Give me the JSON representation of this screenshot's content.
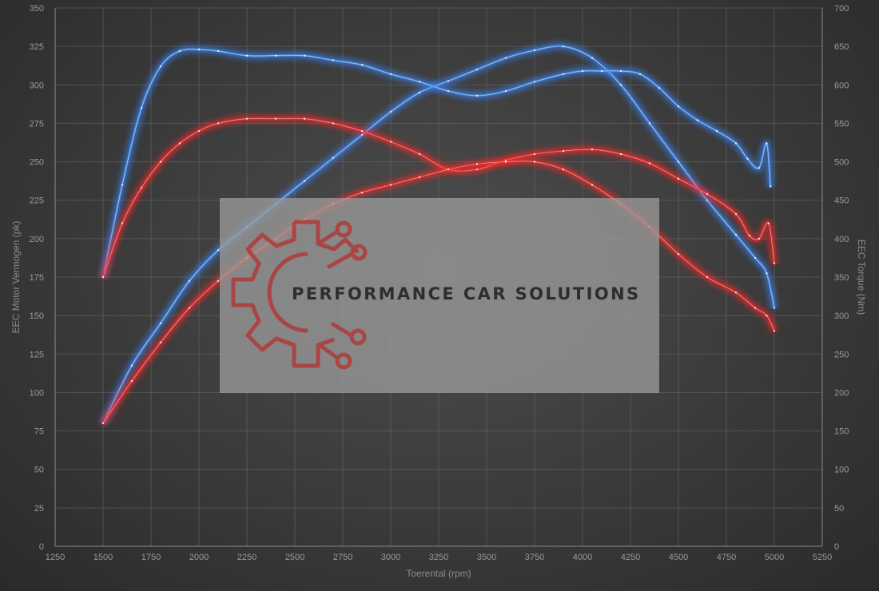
{
  "chart_data": {
    "type": "line",
    "xlabel": "Toerental (rpm)",
    "ylabel": "EEC Motor Vermogen (pk)",
    "y2label": "EEC Torque (Nm)",
    "xlim": [
      1250,
      5250
    ],
    "ylim": [
      0,
      350
    ],
    "y2lim": [
      0,
      700
    ],
    "x_ticks": [
      1250,
      1500,
      1750,
      2000,
      2250,
      2500,
      2750,
      3000,
      3250,
      3500,
      3750,
      4000,
      4250,
      4500,
      4750,
      5000,
      5250
    ],
    "y_ticks": [
      0,
      25,
      50,
      75,
      100,
      125,
      150,
      175,
      200,
      225,
      250,
      275,
      300,
      325,
      350
    ],
    "y2_ticks": [
      0,
      50,
      100,
      150,
      200,
      250,
      300,
      350,
      400,
      450,
      500,
      550,
      600,
      650,
      700
    ],
    "grid": true,
    "series": [
      {
        "axis": "right",
        "color": "#4a8fe0",
        "glow": "#3a86ff",
        "x": [
          1500,
          1650,
          1800,
          1950,
          2100,
          2250,
          2400,
          2550,
          2700,
          2850,
          3000,
          3150,
          3300,
          3450,
          3600,
          3750,
          3900,
          4050,
          4200,
          4350,
          4500,
          4650,
          4800,
          4900,
          4960,
          5000
        ],
        "values": [
          160,
          235,
          290,
          345,
          385,
          415,
          445,
          475,
          505,
          535,
          565,
          590,
          605,
          620,
          635,
          645,
          650,
          635,
          600,
          550,
          500,
          450,
          405,
          375,
          355,
          310
        ]
      },
      {
        "axis": "left",
        "color": "#4a8fe0",
        "glow": "#3a86ff",
        "x": [
          1500,
          1600,
          1700,
          1800,
          1900,
          2000,
          2100,
          2250,
          2400,
          2550,
          2700,
          2850,
          3000,
          3150,
          3300,
          3450,
          3600,
          3750,
          3900,
          4000,
          4100,
          4200,
          4300,
          4400,
          4500,
          4600,
          4700,
          4800,
          4860,
          4920,
          4960,
          4980
        ],
        "values": [
          175,
          235,
          285,
          312,
          322,
          323,
          322,
          319,
          319,
          319,
          316,
          313,
          307,
          302,
          296,
          293,
          296,
          302,
          307,
          309,
          309,
          309,
          307,
          298,
          286,
          277,
          270,
          262,
          252,
          246,
          262,
          234
        ]
      },
      {
        "axis": "left",
        "color": "#e03030",
        "glow": "#ff2a2a",
        "x": [
          1500,
          1600,
          1700,
          1800,
          1900,
          2000,
          2100,
          2250,
          2400,
          2550,
          2700,
          2850,
          3000,
          3150,
          3300,
          3450,
          3600,
          3750,
          3900,
          4050,
          4200,
          4350,
          4500,
          4650,
          4800,
          4870,
          4920,
          4970,
          5000
        ],
        "values": [
          175,
          210,
          233,
          250,
          262,
          270,
          275,
          278,
          278,
          278,
          275,
          270,
          263,
          255,
          245,
          245,
          251,
          255,
          257,
          258,
          255,
          249,
          239,
          229,
          216,
          202,
          200,
          210,
          184
        ]
      },
      {
        "axis": "right",
        "color": "#e03030",
        "glow": "#ff2a2a",
        "x": [
          1500,
          1650,
          1800,
          1950,
          2100,
          2250,
          2400,
          2550,
          2700,
          2850,
          3000,
          3150,
          3300,
          3450,
          3600,
          3750,
          3900,
          4050,
          4200,
          4350,
          4500,
          4650,
          4800,
          4900,
          4960,
          5000
        ],
        "values": [
          160,
          215,
          265,
          310,
          345,
          375,
          400,
          425,
          445,
          460,
          470,
          480,
          490,
          497,
          500,
          500,
          490,
          470,
          445,
          415,
          380,
          350,
          330,
          310,
          300,
          280
        ]
      }
    ]
  },
  "watermark": {
    "brand_text": "PERFORMANCE CAR SOLUTIONS",
    "panel_color": "#9a9a9a",
    "logo_color": "#b03a3a"
  }
}
